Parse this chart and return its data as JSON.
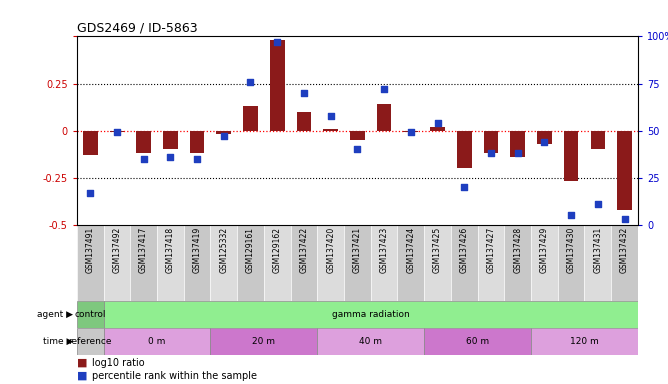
{
  "title": "GDS2469 / ID-5863",
  "samples": [
    "GSM137491",
    "GSM137492",
    "GSM137417",
    "GSM137418",
    "GSM137419",
    "GSM125332",
    "GSM129161",
    "GSM129162",
    "GSM137422",
    "GSM137420",
    "GSM137421",
    "GSM137423",
    "GSM137424",
    "GSM137425",
    "GSM137426",
    "GSM137427",
    "GSM137428",
    "GSM137429",
    "GSM137430",
    "GSM137431",
    "GSM137432"
  ],
  "log10_ratio": [
    -0.13,
    -0.01,
    -0.12,
    -0.1,
    -0.12,
    -0.02,
    0.13,
    0.48,
    0.1,
    0.01,
    -0.05,
    0.14,
    -0.01,
    0.02,
    -0.2,
    -0.12,
    -0.14,
    -0.07,
    -0.27,
    -0.1,
    -0.42
  ],
  "percentile": [
    17,
    49,
    35,
    36,
    35,
    47,
    76,
    97,
    70,
    58,
    40,
    72,
    49,
    54,
    20,
    38,
    38,
    44,
    5,
    11,
    3
  ],
  "ylim_left": [
    -0.5,
    0.5
  ],
  "ylim_right": [
    0,
    100
  ],
  "yticks_left": [
    -0.5,
    -0.25,
    0,
    0.25,
    0.5
  ],
  "yticks_right": [
    0,
    25,
    50,
    75,
    100
  ],
  "bar_color": "#8B1A1A",
  "square_color": "#1E3EBF",
  "tick_label_color_left": "#CC0000",
  "tick_label_color_right": "#0000CC",
  "agent_control_color": "#7EC87E",
  "agent_gamma_color": "#90EE90",
  "time_ref_color": "#C8C8C8",
  "time_alt1_color": "#DDA0DD",
  "time_alt2_color": "#CC77CC",
  "legend_log10_color": "#8B1A1A",
  "legend_pct_color": "#1E3EBF"
}
